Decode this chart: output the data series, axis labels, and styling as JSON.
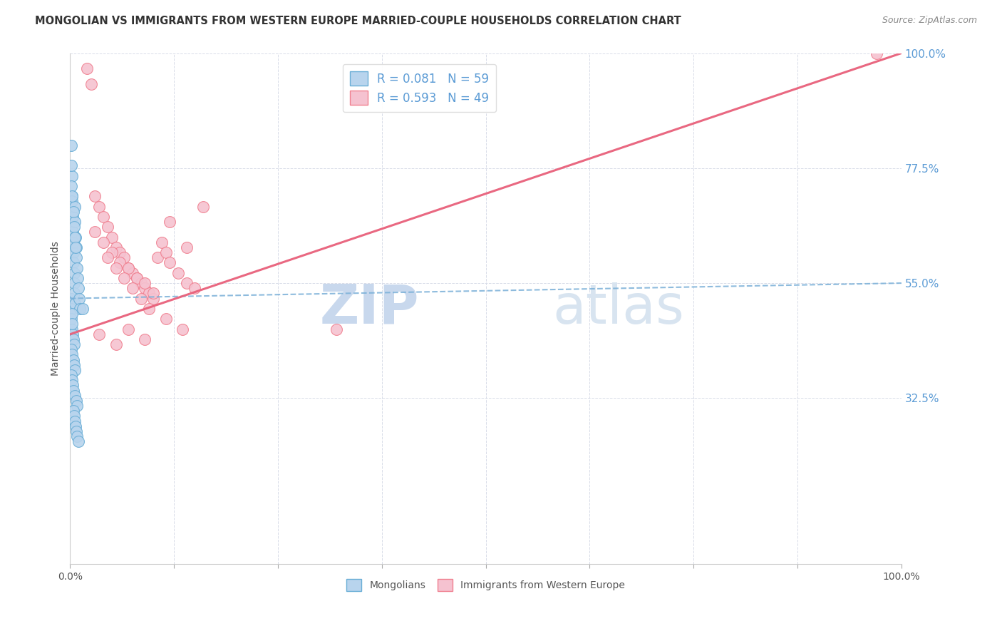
{
  "title": "MONGOLIAN VS IMMIGRANTS FROM WESTERN EUROPE MARRIED-COUPLE HOUSEHOLDS CORRELATION CHART",
  "source": "Source: ZipAtlas.com",
  "ylabel": "Married-couple Households",
  "xlim": [
    0,
    100
  ],
  "ylim": [
    0,
    100
  ],
  "ytick_labels": [
    "100.0%",
    "77.5%",
    "55.0%",
    "32.5%"
  ],
  "ytick_values": [
    100.0,
    77.5,
    55.0,
    32.5
  ],
  "xtick_positions": [
    0,
    12.5,
    25,
    37.5,
    50,
    62.5,
    75,
    87.5,
    100
  ],
  "watermark_zip": "ZIP",
  "watermark_atlas": "atlas",
  "legend_blue_label": "R = 0.081   N = 59",
  "legend_pink_label": "R = 0.593   N = 49",
  "legend_mongolians": "Mongolians",
  "legend_western_europe": "Immigrants from Western Europe",
  "blue_fill": "#b8d4ed",
  "pink_fill": "#f5c2d0",
  "blue_edge": "#6aaed6",
  "pink_edge": "#f08090",
  "blue_line": "#7ab0d8",
  "pink_line": "#e8607a",
  "grid_color": "#d8dce8",
  "background_color": "#ffffff",
  "title_color": "#333333",
  "source_color": "#888888",
  "right_axis_color": "#5b9bd5",
  "mongolian_x": [
    0.1,
    0.15,
    0.2,
    0.2,
    0.25,
    0.3,
    0.3,
    0.35,
    0.4,
    0.4,
    0.45,
    0.5,
    0.5,
    0.55,
    0.6,
    0.6,
    0.65,
    0.7,
    0.75,
    0.8,
    0.9,
    1.0,
    1.1,
    1.2,
    0.15,
    0.25,
    0.35,
    0.45,
    0.55,
    0.65,
    0.1,
    0.2,
    0.3,
    0.4,
    0.5,
    0.15,
    0.25,
    0.35,
    0.45,
    0.55,
    0.1,
    0.2,
    0.3,
    0.4,
    0.6,
    0.7,
    0.8,
    1.5,
    0.1,
    0.15,
    0.2,
    0.25,
    0.35,
    0.45,
    0.55,
    0.65,
    0.75,
    0.85,
    0.95
  ],
  "mongolian_y": [
    52,
    50,
    76,
    72,
    71,
    68,
    65,
    63,
    61,
    59,
    57,
    55,
    53,
    51,
    70,
    67,
    64,
    62,
    60,
    58,
    56,
    54,
    52,
    50,
    74,
    72,
    69,
    66,
    64,
    62,
    48,
    46,
    45,
    44,
    43,
    42,
    41,
    40,
    39,
    38,
    37,
    36,
    35,
    34,
    33,
    32,
    31,
    50,
    82,
    78,
    49,
    47,
    30,
    29,
    28,
    27,
    26,
    25,
    24
  ],
  "western_europe_x": [
    2.0,
    2.5,
    3.0,
    3.5,
    4.0,
    4.5,
    5.0,
    5.5,
    6.0,
    6.5,
    7.0,
    7.5,
    8.0,
    8.5,
    9.0,
    9.5,
    10.0,
    10.5,
    11.0,
    11.5,
    12.0,
    13.0,
    14.0,
    15.0,
    16.0,
    3.0,
    4.0,
    5.0,
    6.0,
    7.0,
    8.0,
    9.0,
    10.0,
    12.0,
    14.0,
    4.5,
    5.5,
    6.5,
    7.5,
    8.5,
    9.5,
    11.5,
    13.5,
    3.5,
    5.5,
    7.0,
    9.0,
    97.0,
    32.0
  ],
  "western_europe_y": [
    97,
    94,
    72,
    70,
    68,
    66,
    64,
    62,
    61,
    60,
    58,
    57,
    56,
    55,
    54,
    53,
    52,
    60,
    63,
    61,
    59,
    57,
    55,
    54,
    70,
    65,
    63,
    61,
    59,
    58,
    56,
    55,
    53,
    67,
    62,
    60,
    58,
    56,
    54,
    52,
    50,
    48,
    46,
    45,
    43,
    46,
    44,
    100,
    46
  ],
  "blue_trendline_start_y": 52.0,
  "blue_trendline_end_y": 55.0,
  "pink_trendline_start_y": 45.0,
  "pink_trendline_end_y": 100.0,
  "title_fontsize": 10.5,
  "source_fontsize": 9,
  "axis_label_fontsize": 10,
  "legend_fontsize": 12,
  "tick_fontsize": 10,
  "watermark_zip_fontsize": 55,
  "watermark_atlas_fontsize": 55
}
